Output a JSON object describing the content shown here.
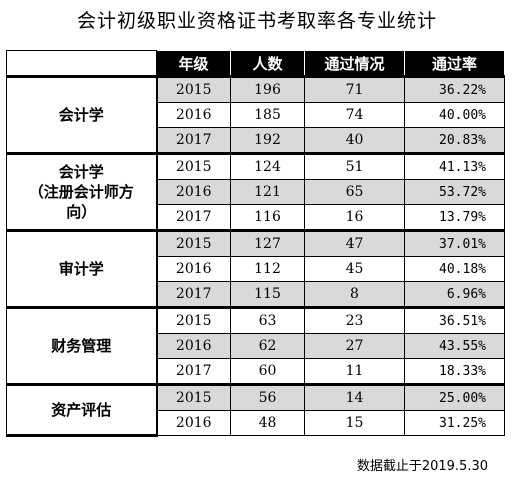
{
  "title": "会计初级职业资格证书考取率各专业统计",
  "headers": [
    "年级",
    "人数",
    "通过情况",
    "通过率"
  ],
  "groups": [
    {
      "major": [
        "会计学"
      ],
      "rows": [
        {
          "year": "2015",
          "count": "196",
          "passed": "71",
          "rate": "36.22%",
          "shaded": true
        },
        {
          "year": "2016",
          "count": "185",
          "passed": "74",
          "rate": "40.00%",
          "shaded": false
        },
        {
          "year": "2017",
          "count": "192",
          "passed": "40",
          "rate": "20.83%",
          "shaded": true
        }
      ]
    },
    {
      "major": [
        "会计学",
        "（注册会计师方",
        "向）"
      ],
      "rows": [
        {
          "year": "2015",
          "count": "124",
          "passed": "51",
          "rate": "41.13%",
          "shaded": false
        },
        {
          "year": "2016",
          "count": "121",
          "passed": "65",
          "rate": "53.72%",
          "shaded": true
        },
        {
          "year": "2017",
          "count": "116",
          "passed": "16",
          "rate": "13.79%",
          "shaded": false
        }
      ]
    },
    {
      "major": [
        "审计学"
      ],
      "rows": [
        {
          "year": "2015",
          "count": "127",
          "passed": "47",
          "rate": "37.01%",
          "shaded": true
        },
        {
          "year": "2016",
          "count": "112",
          "passed": "45",
          "rate": "40.18%",
          "shaded": false
        },
        {
          "year": "2017",
          "count": "115",
          "passed": "8",
          "rate": "6.96%",
          "shaded": true
        }
      ]
    },
    {
      "major": [
        "财务管理"
      ],
      "rows": [
        {
          "year": "2015",
          "count": "63",
          "passed": "23",
          "rate": "36.51%",
          "shaded": false
        },
        {
          "year": "2016",
          "count": "62",
          "passed": "27",
          "rate": "43.55%",
          "shaded": true
        },
        {
          "year": "2017",
          "count": "60",
          "passed": "11",
          "rate": "18.33%",
          "shaded": false
        }
      ]
    },
    {
      "major": [
        "资产评估"
      ],
      "rows": [
        {
          "year": "2015",
          "count": "56",
          "passed": "14",
          "rate": "25.00%",
          "shaded": true
        },
        {
          "year": "2016",
          "count": "48",
          "passed": "15",
          "rate": "31.25%",
          "shaded": false
        }
      ]
    }
  ],
  "note": "数据截止于2019.5.30"
}
